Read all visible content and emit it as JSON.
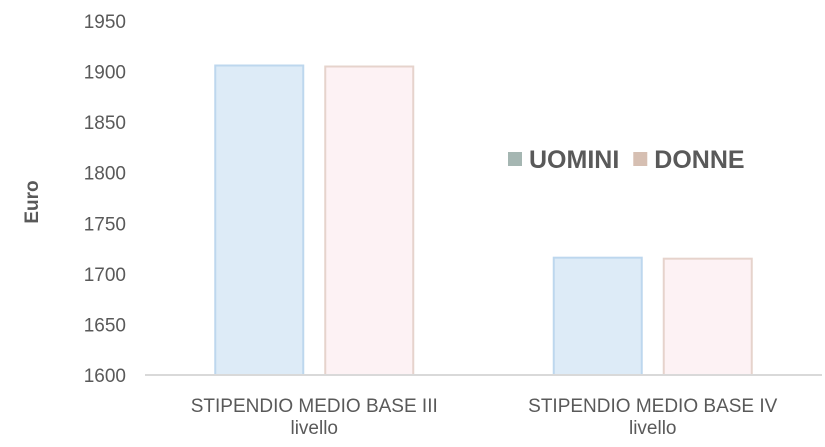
{
  "chart_data": {
    "type": "bar",
    "title": "",
    "xlabel": "",
    "ylabel": "Euro",
    "ylim": [
      1600,
      1950
    ],
    "yticks": [
      1600,
      1650,
      1700,
      1750,
      1800,
      1850,
      1900,
      1950
    ],
    "grid": false,
    "legend_position": "right",
    "categories": [
      [
        "STIPENDIO MEDIO BASE III",
        "livello"
      ],
      [
        "STIPENDIO MEDIO BASE IV",
        "livello"
      ]
    ],
    "series": [
      {
        "name": "UOMINI",
        "values": [
          1906,
          1716
        ],
        "fill": "#ddebf7",
        "stroke": "#bdd7ee",
        "legend_color": "#a5b6b2"
      },
      {
        "name": "DONNE",
        "values": [
          1905,
          1715
        ],
        "fill": "#fdf2f4",
        "stroke": "#e6d3cc",
        "legend_color": "#d6bfb2"
      }
    ],
    "axis_color": "#d9d9d9",
    "text_color": "#595959"
  }
}
